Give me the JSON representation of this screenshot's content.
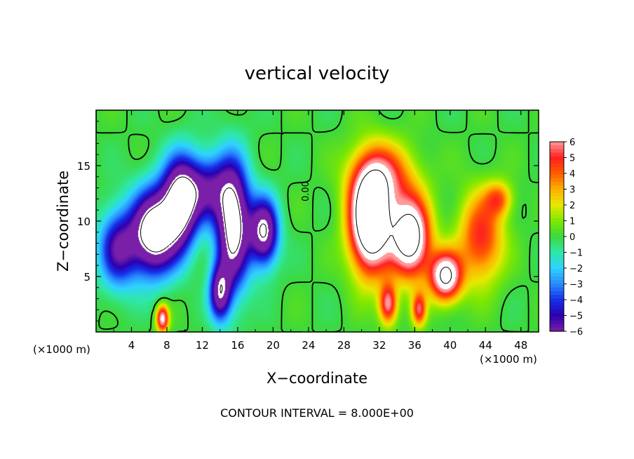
{
  "chart_data": {
    "type": "heatmap",
    "title": "vertical velocity",
    "xlabel": "X−coordinate",
    "ylabel": "Z−coordinate",
    "x_unit_left": "(×1000 m)",
    "x_unit_right": "(×1000 m)",
    "xlim": [
      0,
      50
    ],
    "ylim": [
      0,
      20
    ],
    "x_ticks": [
      4,
      8,
      12,
      16,
      20,
      24,
      28,
      32,
      36,
      40,
      44,
      48
    ],
    "y_ticks": [
      5,
      10,
      15
    ],
    "colorbar": {
      "min": -6,
      "max": 6,
      "ticks": [
        6,
        5,
        4,
        3,
        2,
        1,
        0,
        -1,
        -2,
        -3,
        -4,
        -5,
        -6
      ],
      "tick_labels": [
        "6",
        "5",
        "4",
        "3",
        "2",
        "1",
        "0",
        "−1",
        "−2",
        "−3",
        "−4",
        "−5",
        "−6"
      ],
      "out_of_range_color": "#ffffff"
    },
    "contour_label": "0.00",
    "footer": "CONTOUR INTERVAL = 8.000E+00",
    "features": [
      {
        "kind": "downdraft",
        "x": 6.5,
        "z": 9.0,
        "amp": -9.5,
        "sx": 2.5,
        "sz": 3.8
      },
      {
        "kind": "downdraft",
        "x": 9.5,
        "z": 11.5,
        "amp": -8.5,
        "sx": 2.0,
        "sz": 4.0
      },
      {
        "kind": "downdraft",
        "x": 15.5,
        "z": 9.5,
        "amp": -9.0,
        "sx": 1.9,
        "sz": 5.5
      },
      {
        "kind": "downdraft",
        "x": 19.0,
        "z": 9.0,
        "amp": -8.0,
        "sx": 1.6,
        "sz": 3.0
      },
      {
        "kind": "downdraft",
        "x": 14.0,
        "z": 3.5,
        "amp": -6.5,
        "sx": 1.2,
        "sz": 2.5
      },
      {
        "kind": "downdraft",
        "x": 2.5,
        "z": 7.5,
        "amp": -5.5,
        "sx": 2.2,
        "sz": 3.5
      },
      {
        "kind": "downdraft",
        "x": 12.5,
        "z": 13.0,
        "amp": -5.0,
        "sx": 3.0,
        "sz": 3.0
      },
      {
        "kind": "updraft",
        "x": 7.5,
        "z": 1.2,
        "amp": 7.0,
        "sx": 0.7,
        "sz": 1.2
      },
      {
        "kind": "updraft",
        "x": 31.0,
        "z": 10.0,
        "amp": 12.0,
        "sx": 2.3,
        "sz": 4.5
      },
      {
        "kind": "updraft",
        "x": 35.5,
        "z": 8.5,
        "amp": 10.0,
        "sx": 2.2,
        "sz": 3.5
      },
      {
        "kind": "updraft",
        "x": 39.5,
        "z": 5.0,
        "amp": 8.5,
        "sx": 1.8,
        "sz": 2.2
      },
      {
        "kind": "updraft",
        "x": 43.5,
        "z": 8.5,
        "amp": 5.0,
        "sx": 2.5,
        "sz": 4.0
      },
      {
        "kind": "updraft",
        "x": 33.0,
        "z": 2.5,
        "amp": 6.0,
        "sx": 1.0,
        "sz": 1.8
      },
      {
        "kind": "updraft",
        "x": 36.5,
        "z": 2.0,
        "amp": 5.0,
        "sx": 0.8,
        "sz": 1.5
      },
      {
        "kind": "updraft",
        "x": 32.5,
        "z": 14.0,
        "amp": 4.5,
        "sx": 3.5,
        "sz": 3.0
      },
      {
        "kind": "updraft",
        "x": 45.5,
        "z": 12.0,
        "amp": 3.5,
        "sx": 1.5,
        "sz": 1.5
      }
    ],
    "colors": {
      "-6": "#7a1fa8",
      "-5": "#2b00b0",
      "-4": "#1530e8",
      "-3": "#2a8cff",
      "-2": "#2fd2ff",
      "-1": "#2ee8a8",
      "0": "#3cd83c",
      "1": "#7fe800",
      "2": "#e8e800",
      "3": "#ffb000",
      "4": "#ff5a00",
      "5": "#ff2020",
      "6": "#ff9a9a"
    }
  }
}
